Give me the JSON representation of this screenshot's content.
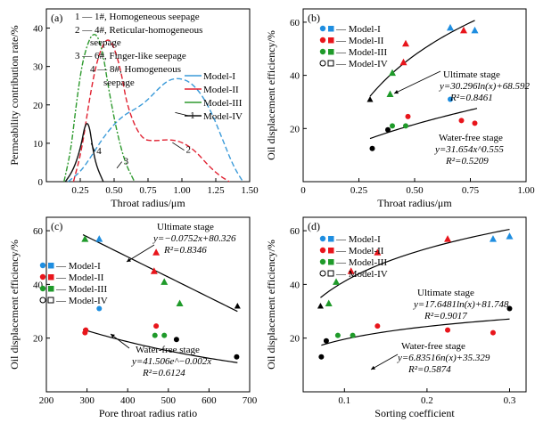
{
  "chart_data": [
    {
      "type": "line",
      "panel_label": "(a)",
      "xlabel": "Throat radius/μm",
      "ylabel": "Permeability contribution rate/%",
      "xlim": [
        0,
        1.5
      ],
      "ylim": [
        0,
        45
      ],
      "xticks": [
        "0.25",
        "0.50",
        "0.75",
        "1.00",
        "1.25",
        "1.50"
      ],
      "yticks": [
        "0",
        "10",
        "20",
        "30",
        "40"
      ],
      "annotations": {
        "lines": [
          "1 — 1#, Homogeneous seepage",
          "2 — 4#, Reticular-homogeneous",
          "seepage",
          "3 — 6#, Finger-like seepage",
          "4 — 8#, Homogeneous",
          "seepage"
        ],
        "curve_labels": [
          "1",
          "2",
          "3",
          "4"
        ]
      },
      "legend": [
        "Model-I",
        "Model-II",
        "Model-III",
        "Model-IV"
      ],
      "series": [
        {
          "name": "Model-I",
          "color": "#3a9ad9",
          "dash": "6,3",
          "x": [
            0.16,
            0.25,
            0.33,
            0.41,
            0.5,
            0.58,
            0.66,
            0.74,
            0.82,
            0.9,
            0.98,
            1.06,
            1.14,
            1.22,
            1.3,
            1.38,
            1.45
          ],
          "y": [
            0,
            2.5,
            6.5,
            11,
            15,
            17.5,
            19,
            21,
            24,
            26.5,
            27,
            26,
            23,
            18,
            11,
            4,
            0
          ]
        },
        {
          "name": "Model-II",
          "color": "#e02030",
          "dash": "6,3",
          "x": [
            0.2,
            0.26,
            0.32,
            0.37,
            0.42,
            0.46,
            0.5,
            0.55,
            0.6,
            0.7,
            0.8,
            0.9,
            1.0,
            1.1,
            1.2,
            1.28,
            1.35
          ],
          "y": [
            0,
            8,
            22,
            31,
            36,
            37.3,
            35,
            29,
            19,
            11,
            10.6,
            11,
            10.4,
            8,
            4,
            1.5,
            0
          ]
        },
        {
          "name": "Model-III",
          "color": "#2e9a2e",
          "dash": "6,2,2,2",
          "x": [
            0.13,
            0.18,
            0.22,
            0.26,
            0.3,
            0.34,
            0.38,
            0.42,
            0.46,
            0.52,
            0.58,
            0.65
          ],
          "y": [
            0,
            8,
            20,
            30,
            35.5,
            38.6,
            38,
            33,
            24,
            13,
            5,
            0
          ]
        },
        {
          "name": "Model-IV",
          "color": "#111111",
          "dash": "",
          "x": [
            0.14,
            0.18,
            0.22,
            0.26,
            0.28,
            0.3,
            0.32,
            0.34,
            0.37,
            0.42
          ],
          "y": [
            0,
            2,
            5,
            10,
            14,
            15.5,
            14,
            9,
            4,
            0
          ]
        }
      ]
    },
    {
      "type": "scatter",
      "panel_label": "(b)",
      "xlabel": "Throat radius/μm",
      "ylabel": "Oil displacement efficiency/%",
      "xlim": [
        0,
        1.0
      ],
      "ylim": [
        0,
        65
      ],
      "xticks": [
        "0",
        "0.25",
        "0.50",
        "0.75",
        "1.00"
      ],
      "yticks": [
        "20",
        "40",
        "60"
      ],
      "legend": [
        "— Model-I",
        "— Model-II",
        "— Model-III",
        "— Model-IV"
      ],
      "fits": [
        {
          "name": "Ultimate stage",
          "eq": "y=30.296ln(x)+68.592",
          "r2": "R²=0.8461"
        },
        {
          "name": "Water-free stage",
          "eq": "y=31.654x^0.555",
          "r2": "R²=0.5209"
        }
      ],
      "ultimate_points": [
        {
          "x": 0.3,
          "y": 31,
          "model": "IV"
        },
        {
          "x": 0.39,
          "y": 33,
          "model": "III"
        },
        {
          "x": 0.4,
          "y": 41,
          "model": "III"
        },
        {
          "x": 0.45,
          "y": 45,
          "model": "II"
        },
        {
          "x": 0.46,
          "y": 52,
          "model": "II"
        },
        {
          "x": 0.66,
          "y": 58,
          "model": "I"
        },
        {
          "x": 0.72,
          "y": 57,
          "model": "II"
        },
        {
          "x": 0.77,
          "y": 57,
          "model": "I"
        }
      ],
      "water_free_points": [
        {
          "x": 0.31,
          "y": 12.5,
          "model": "IV"
        },
        {
          "x": 0.38,
          "y": 19.5,
          "model": "IV"
        },
        {
          "x": 0.4,
          "y": 21,
          "model": "III"
        },
        {
          "x": 0.46,
          "y": 21,
          "model": "III"
        },
        {
          "x": 0.47,
          "y": 24.5,
          "model": "II"
        },
        {
          "x": 0.66,
          "y": 31,
          "model": "I"
        },
        {
          "x": 0.71,
          "y": 23,
          "model": "II"
        },
        {
          "x": 0.77,
          "y": 22,
          "model": "II"
        }
      ]
    },
    {
      "type": "scatter",
      "panel_label": "(c)",
      "xlabel": "Pore throat radius ratio",
      "ylabel": "Oil displacement efficiency/%",
      "xlim": [
        200,
        700
      ],
      "ylim": [
        0,
        65
      ],
      "xticks": [
        "200",
        "300",
        "400",
        "500",
        "600",
        "700"
      ],
      "yticks": [
        "20",
        "40",
        "60"
      ],
      "legend": [
        "— Model-I",
        "— Model-II",
        "— Model-III",
        "— Model-IV"
      ],
      "fits": [
        {
          "name": "Ultimate stage",
          "eq": "y=−0.0752x+80.326",
          "r2": "R²=0.8346"
        },
        {
          "name": "Water-free stage",
          "eq": "y=41.506e^−0.002x",
          "r2": "R²=0.6124"
        }
      ],
      "ultimate_points": [
        {
          "x": 295,
          "y": 57,
          "model": "III"
        },
        {
          "x": 330,
          "y": 57,
          "model": "I"
        },
        {
          "x": 465,
          "y": 45,
          "model": "II"
        },
        {
          "x": 470,
          "y": 52,
          "model": "II"
        },
        {
          "x": 490,
          "y": 41,
          "model": "III"
        },
        {
          "x": 528,
          "y": 33,
          "model": "III"
        },
        {
          "x": 670,
          "y": 32,
          "model": "IV"
        }
      ],
      "water_free_points": [
        {
          "x": 295,
          "y": 22,
          "model": "II"
        },
        {
          "x": 297,
          "y": 23,
          "model": "II"
        },
        {
          "x": 330,
          "y": 31,
          "model": "I"
        },
        {
          "x": 467,
          "y": 21,
          "model": "III"
        },
        {
          "x": 470,
          "y": 24.5,
          "model": "II"
        },
        {
          "x": 490,
          "y": 21,
          "model": "III"
        },
        {
          "x": 520,
          "y": 19.5,
          "model": "IV"
        },
        {
          "x": 668,
          "y": 13,
          "model": "IV"
        }
      ]
    },
    {
      "type": "scatter",
      "panel_label": "(d)",
      "xlabel": "Sorting coefficient",
      "ylabel": "Oil displacement efficiency/%",
      "xlim": [
        0.05,
        0.32
      ],
      "ylim": [
        0,
        65
      ],
      "xticks": [
        "0.1",
        "0.2",
        "0.3"
      ],
      "yticks": [
        "20",
        "40",
        "60"
      ],
      "legend": [
        "— Model-I",
        "— Model-II",
        "— Model-III",
        "— Model-IV"
      ],
      "fits": [
        {
          "name": "Ultimate stage",
          "eq": "y=17.6481ln(x)+81.748",
          "r2": "R²=0.9017"
        },
        {
          "name": "Water-free stage",
          "eq": "y=6.83516n(x)+35.329",
          "r2": "R²=0.5874"
        }
      ],
      "ultimate_points": [
        {
          "x": 0.071,
          "y": 32,
          "model": "IV"
        },
        {
          "x": 0.081,
          "y": 33,
          "model": "III"
        },
        {
          "x": 0.09,
          "y": 41,
          "model": "III"
        },
        {
          "x": 0.108,
          "y": 45,
          "model": "II"
        },
        {
          "x": 0.14,
          "y": 52,
          "model": "II"
        },
        {
          "x": 0.225,
          "y": 57,
          "model": "II"
        },
        {
          "x": 0.28,
          "y": 57,
          "model": "I"
        },
        {
          "x": 0.3,
          "y": 58,
          "model": "I"
        }
      ],
      "water_free_points": [
        {
          "x": 0.072,
          "y": 13,
          "model": "IV"
        },
        {
          "x": 0.078,
          "y": 19,
          "model": "IV"
        },
        {
          "x": 0.092,
          "y": 21,
          "model": "III"
        },
        {
          "x": 0.11,
          "y": 21,
          "model": "III"
        },
        {
          "x": 0.14,
          "y": 24.5,
          "model": "II"
        },
        {
          "x": 0.225,
          "y": 23,
          "model": "II"
        },
        {
          "x": 0.28,
          "y": 22,
          "model": "II"
        },
        {
          "x": 0.3,
          "y": 31,
          "model": "IV"
        }
      ]
    }
  ],
  "colors": {
    "Model-I": "#1f8ee0",
    "Model-II": "#e8151b",
    "Model-III": "#1f9a2a",
    "Model-IV": "#000000"
  }
}
